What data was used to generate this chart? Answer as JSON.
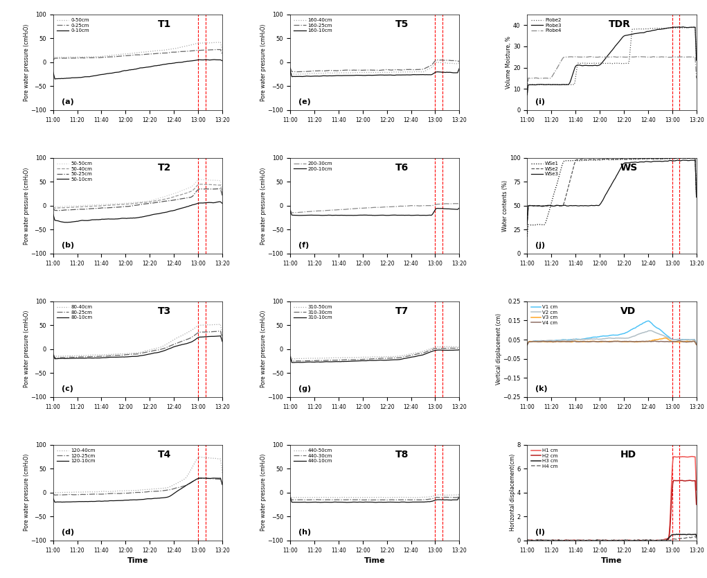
{
  "time_ticks": [
    660,
    680,
    700,
    720,
    740,
    760,
    780,
    800
  ],
  "time_tick_labels": [
    "11:00",
    "11:20",
    "11:40",
    "12:00",
    "12:20",
    "12:40",
    "13:00",
    "13:20"
  ],
  "vline1": 780,
  "vline2": 786,
  "T1_labels": [
    "0-50cm",
    "0-25cm",
    "0-10cm"
  ],
  "T2_labels": [
    "50-50cm",
    "50-40cm",
    "50-25cm",
    "50-10cm"
  ],
  "T3_labels": [
    "80-40cm",
    "80-25cm",
    "80-10cm"
  ],
  "T4_labels": [
    "120-40cm",
    "120-25cm",
    "120-10cm"
  ],
  "T5_labels": [
    "160-40cm",
    "160-25cm",
    "160-10cm"
  ],
  "T6_labels": [
    "200-30cm",
    "200-10cm"
  ],
  "T7_labels": [
    "310-50cm",
    "310-30cm",
    "310-10cm"
  ],
  "T8_labels": [
    "440-50cm",
    "440-30cm",
    "440-10cm"
  ],
  "TDR_labels": [
    "Plobe2",
    "Plobe3",
    "Plobe4"
  ],
  "WS_labels": [
    "WSe1",
    "WSe2",
    "WSe3"
  ],
  "VD_labels": [
    "V1 cm",
    "V2 cm",
    "V3 cm",
    "V4 cm"
  ],
  "HD_labels": [
    "H1 cm",
    "H2 cm",
    "H3 cm",
    "H4 cm"
  ],
  "ylabel_pore": "Pore water pressure (cmH₂O)",
  "ylabel_TDR": "Volume Moisture, %",
  "ylabel_WS": "Water contents (%)",
  "ylabel_VD": "Vertical displacement (cm)",
  "ylabel_HD": "Horizontal displacement(cm)",
  "xlabel": "Time",
  "VD_colors": [
    "#4FC3F7",
    "#B0BEC5",
    "#FFA726",
    "#8D6E63"
  ],
  "HD_colors": [
    "#EF5350",
    "#B71C1C",
    "#212121",
    "#757575"
  ]
}
